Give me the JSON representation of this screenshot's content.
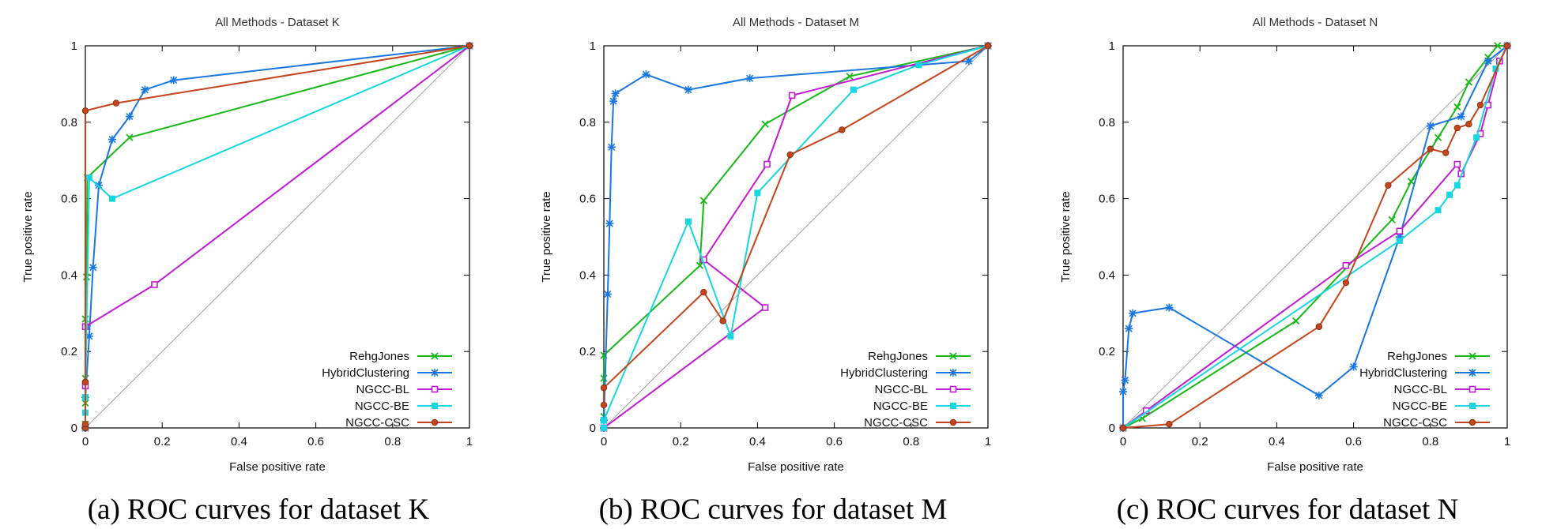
{
  "chart_data": [
    {
      "type": "line",
      "title": "All Methods - Dataset K",
      "xlabel": "False positive rate",
      "ylabel": "True positive rate",
      "xlim": [
        0,
        1
      ],
      "ylim": [
        0,
        1
      ],
      "xticks": [
        "0",
        "0.2",
        "0.4",
        "0.6",
        "0.8",
        "1"
      ],
      "yticks": [
        "0",
        "0.2",
        "0.4",
        "0.6",
        "0.8",
        "1"
      ],
      "legend_position": "bottom-right",
      "caption": "(a) ROC curves for dataset K",
      "series": [
        {
          "name": "RehgJones",
          "color": "#18b818",
          "marker": "x",
          "points": [
            [
              0,
              0
            ],
            [
              0,
              0.01
            ],
            [
              0,
              0.065
            ],
            [
              0,
              0.13
            ],
            [
              0,
              0.285
            ],
            [
              0.003,
              0.395
            ],
            [
              0.005,
              0.655
            ],
            [
              0.115,
              0.76
            ],
            [
              1,
              1
            ]
          ]
        },
        {
          "name": "HybridClustering",
          "color": "#1a76e0",
          "marker": "star",
          "points": [
            [
              0,
              0
            ],
            [
              0,
              0.08
            ],
            [
              0.01,
              0.24
            ],
            [
              0.02,
              0.42
            ],
            [
              0.035,
              0.635
            ],
            [
              0.07,
              0.755
            ],
            [
              0.115,
              0.815
            ],
            [
              0.155,
              0.885
            ],
            [
              0.23,
              0.91
            ],
            [
              1,
              1
            ]
          ]
        },
        {
          "name": "NGCC-BL",
          "color": "#c21ad4",
          "marker": "square",
          "points": [
            [
              0,
              0
            ],
            [
              0,
              0.11
            ],
            [
              0,
              0.265
            ],
            [
              0.18,
              0.375
            ],
            [
              1,
              1
            ]
          ]
        },
        {
          "name": "NGCC-BE",
          "color": "#17d6e0",
          "marker": "filled-square",
          "points": [
            [
              0,
              0
            ],
            [
              0,
              0.04
            ],
            [
              0,
              0.08
            ],
            [
              0.01,
              0.655
            ],
            [
              0.07,
              0.6
            ],
            [
              1,
              1
            ]
          ]
        },
        {
          "name": "NGCC-CSC",
          "color": "#c4451b",
          "marker": "circle",
          "points": [
            [
              0,
              0
            ],
            [
              0,
              0.01
            ],
            [
              0,
              0.12
            ],
            [
              0,
              0.83
            ],
            [
              0.08,
              0.85
            ],
            [
              1,
              1
            ]
          ]
        }
      ]
    },
    {
      "type": "line",
      "title": "All Methods - Dataset M",
      "xlabel": "False positive rate",
      "ylabel": "True positive rate",
      "xlim": [
        0,
        1
      ],
      "ylim": [
        0,
        1
      ],
      "xticks": [
        "0",
        "0.2",
        "0.4",
        "0.6",
        "0.8",
        "1"
      ],
      "yticks": [
        "0",
        "0.2",
        "0.4",
        "0.6",
        "0.8",
        "1"
      ],
      "legend_position": "bottom-right",
      "caption": "(b) ROC curves for dataset M",
      "series": [
        {
          "name": "RehgJones",
          "color": "#18b818",
          "marker": "x",
          "points": [
            [
              0,
              0
            ],
            [
              0,
              0.03
            ],
            [
              0,
              0.13
            ],
            [
              0,
              0.19
            ],
            [
              0.25,
              0.425
            ],
            [
              0.26,
              0.595
            ],
            [
              0.42,
              0.795
            ],
            [
              0.64,
              0.92
            ],
            [
              1,
              1
            ]
          ]
        },
        {
          "name": "HybridClustering",
          "color": "#1a76e0",
          "marker": "star",
          "points": [
            [
              0,
              0
            ],
            [
              0,
              0.02
            ],
            [
              0.01,
              0.35
            ],
            [
              0.015,
              0.535
            ],
            [
              0.02,
              0.735
            ],
            [
              0.025,
              0.855
            ],
            [
              0.03,
              0.875
            ],
            [
              0.11,
              0.925
            ],
            [
              0.22,
              0.885
            ],
            [
              0.38,
              0.915
            ],
            [
              0.95,
              0.96
            ],
            [
              1,
              1
            ]
          ]
        },
        {
          "name": "NGCC-BL",
          "color": "#c21ad4",
          "marker": "square",
          "points": [
            [
              0,
              0
            ],
            [
              0.42,
              0.315
            ],
            [
              0.26,
              0.44
            ],
            [
              0.425,
              0.69
            ],
            [
              0.49,
              0.87
            ],
            [
              1,
              1
            ]
          ]
        },
        {
          "name": "NGCC-BE",
          "color": "#17d6e0",
          "marker": "filled-square",
          "points": [
            [
              0,
              0
            ],
            [
              0,
              0.02
            ],
            [
              0.22,
              0.54
            ],
            [
              0.33,
              0.24
            ],
            [
              0.4,
              0.615
            ],
            [
              0.65,
              0.885
            ],
            [
              0.82,
              0.95
            ],
            [
              1,
              1
            ]
          ]
        },
        {
          "name": "NGCC-CSC",
          "color": "#c4451b",
          "marker": "circle",
          "points": [
            [
              0,
              0.06
            ],
            [
              0,
              0.105
            ],
            [
              0.26,
              0.355
            ],
            [
              0.31,
              0.28
            ],
            [
              0.485,
              0.715
            ],
            [
              0.62,
              0.78
            ],
            [
              1,
              1
            ]
          ]
        }
      ]
    },
    {
      "type": "line",
      "title": "All Methods - Dataset N",
      "xlabel": "False positive rate",
      "ylabel": "True positive rate",
      "xlim": [
        0,
        1
      ],
      "ylim": [
        0,
        1
      ],
      "xticks": [
        "0",
        "0.2",
        "0.4",
        "0.6",
        "0.8",
        "1"
      ],
      "yticks": [
        "0",
        "0.2",
        "0.4",
        "0.6",
        "0.8",
        "1"
      ],
      "legend_position": "bottom-right",
      "caption": "(c) ROC curves for dataset N",
      "series": [
        {
          "name": "RehgJones",
          "color": "#18b818",
          "marker": "x",
          "points": [
            [
              0,
              0
            ],
            [
              0.05,
              0.025
            ],
            [
              0.45,
              0.28
            ],
            [
              0.7,
              0.545
            ],
            [
              0.75,
              0.645
            ],
            [
              0.82,
              0.76
            ],
            [
              0.87,
              0.84
            ],
            [
              0.9,
              0.905
            ],
            [
              0.95,
              0.97
            ],
            [
              0.975,
              1
            ],
            [
              1,
              1
            ]
          ]
        },
        {
          "name": "HybridClustering",
          "color": "#1a76e0",
          "marker": "star",
          "points": [
            [
              0,
              0
            ],
            [
              0,
              0.095
            ],
            [
              0.005,
              0.125
            ],
            [
              0.015,
              0.26
            ],
            [
              0.025,
              0.3
            ],
            [
              0.12,
              0.315
            ],
            [
              0.51,
              0.085
            ],
            [
              0.6,
              0.16
            ],
            [
              0.72,
              0.5
            ],
            [
              0.8,
              0.79
            ],
            [
              0.88,
              0.815
            ],
            [
              0.95,
              0.96
            ],
            [
              1,
              1
            ]
          ]
        },
        {
          "name": "NGCC-BL",
          "color": "#c21ad4",
          "marker": "square",
          "points": [
            [
              0,
              0
            ],
            [
              0.06,
              0.045
            ],
            [
              0.58,
              0.425
            ],
            [
              0.72,
              0.515
            ],
            [
              0.87,
              0.69
            ],
            [
              0.88,
              0.665
            ],
            [
              0.93,
              0.77
            ],
            [
              0.95,
              0.845
            ],
            [
              0.98,
              0.96
            ],
            [
              1,
              1
            ]
          ]
        },
        {
          "name": "NGCC-BE",
          "color": "#17d6e0",
          "marker": "filled-square",
          "points": [
            [
              0,
              0
            ],
            [
              0.72,
              0.49
            ],
            [
              0.82,
              0.57
            ],
            [
              0.85,
              0.61
            ],
            [
              0.87,
              0.635
            ],
            [
              0.92,
              0.76
            ],
            [
              0.97,
              0.94
            ],
            [
              1,
              1
            ]
          ]
        },
        {
          "name": "NGCC-CSC",
          "color": "#c4451b",
          "marker": "circle",
          "points": [
            [
              0,
              0
            ],
            [
              0.12,
              0.01
            ],
            [
              0.51,
              0.265
            ],
            [
              0.58,
              0.38
            ],
            [
              0.69,
              0.635
            ],
            [
              0.8,
              0.73
            ],
            [
              0.84,
              0.72
            ],
            [
              0.87,
              0.785
            ],
            [
              0.9,
              0.795
            ],
            [
              0.93,
              0.845
            ],
            [
              1,
              1
            ]
          ]
        }
      ]
    }
  ]
}
